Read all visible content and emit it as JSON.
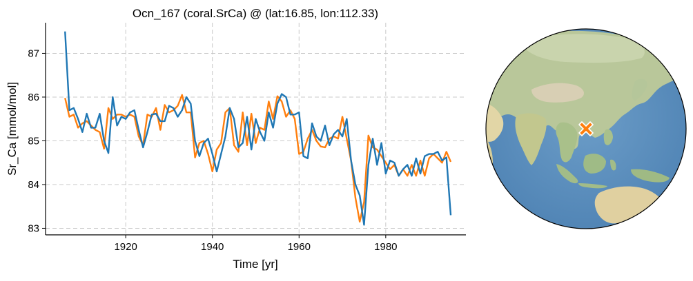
{
  "chart_data": {
    "type": "line",
    "title": "Ocn_167 (coral.SrCa) @ (lat:16.85, lon:112.33)",
    "xlabel": "Time [yr]",
    "ylabel": "Sr_Ca [mmol/mol]",
    "xlim": [
      1901.5,
      1998.5
    ],
    "ylim": [
      82.85,
      87.7
    ],
    "xticks": [
      1920,
      1940,
      1960,
      1980
    ],
    "yticks": [
      83,
      84,
      85,
      86,
      87
    ],
    "grid": true,
    "series": [
      {
        "color": "#ff7f0e",
        "x": [
          1906,
          1907,
          1908,
          1909,
          1910,
          1911,
          1912,
          1913,
          1914,
          1915,
          1916,
          1917,
          1918,
          1919,
          1920,
          1921,
          1922,
          1923,
          1924,
          1925,
          1926,
          1927,
          1928,
          1929,
          1930,
          1931,
          1932,
          1933,
          1934,
          1935,
          1936,
          1937,
          1938,
          1939,
          1940,
          1941,
          1942,
          1943,
          1944,
          1945,
          1946,
          1947,
          1948,
          1949,
          1950,
          1951,
          1952,
          1953,
          1954,
          1955,
          1956,
          1957,
          1958,
          1959,
          1960,
          1961,
          1962,
          1963,
          1964,
          1965,
          1966,
          1967,
          1968,
          1969,
          1970,
          1971,
          1972,
          1973,
          1974,
          1975,
          1976,
          1977,
          1978,
          1979,
          1980,
          1981,
          1982,
          1983,
          1984,
          1985,
          1986,
          1987,
          1988,
          1989,
          1990,
          1991,
          1992,
          1993,
          1994,
          1995
        ],
        "values": [
          85.98,
          85.55,
          85.6,
          85.3,
          85.4,
          85.45,
          85.35,
          85.25,
          85.2,
          84.82,
          85.75,
          85.5,
          85.6,
          85.6,
          85.55,
          85.6,
          85.55,
          85.1,
          84.9,
          85.6,
          85.55,
          85.75,
          85.25,
          85.82,
          85.65,
          85.7,
          85.8,
          86.05,
          85.65,
          85.65,
          84.62,
          84.95,
          85.0,
          84.7,
          84.3,
          84.8,
          84.95,
          85.65,
          85.75,
          84.9,
          84.75,
          85.65,
          84.9,
          85.62,
          84.95,
          85.3,
          85.25,
          85.9,
          85.5,
          86.02,
          85.9,
          85.55,
          85.7,
          85.5,
          84.7,
          84.75,
          85.05,
          85.25,
          85.0,
          84.87,
          84.85,
          85.05,
          85.1,
          85.05,
          85.55,
          85.05,
          84.55,
          83.7,
          83.15,
          83.6,
          85.12,
          84.85,
          84.8,
          84.65,
          84.5,
          84.35,
          84.45,
          84.2,
          84.35,
          84.2,
          84.45,
          84.2,
          84.55,
          84.2,
          84.6,
          84.7,
          84.6,
          84.5,
          84.75,
          84.52
        ]
      },
      {
        "color": "#1f77b4",
        "x": [
          1906,
          1907,
          1908,
          1909,
          1910,
          1911,
          1912,
          1913,
          1914,
          1915,
          1916,
          1917,
          1918,
          1919,
          1920,
          1921,
          1922,
          1923,
          1924,
          1925,
          1926,
          1927,
          1928,
          1929,
          1930,
          1931,
          1932,
          1933,
          1934,
          1935,
          1936,
          1937,
          1938,
          1939,
          1940,
          1941,
          1942,
          1943,
          1944,
          1945,
          1946,
          1947,
          1948,
          1949,
          1950,
          1951,
          1952,
          1953,
          1954,
          1955,
          1956,
          1957,
          1958,
          1959,
          1960,
          1961,
          1962,
          1963,
          1964,
          1965,
          1966,
          1967,
          1968,
          1969,
          1970,
          1971,
          1972,
          1973,
          1974,
          1975,
          1976,
          1977,
          1978,
          1979,
          1980,
          1981,
          1982,
          1983,
          1984,
          1985,
          1986,
          1987,
          1988,
          1989,
          1990,
          1991,
          1992,
          1993,
          1994,
          1995
        ],
        "values": [
          87.5,
          85.7,
          85.75,
          85.5,
          85.2,
          85.62,
          85.3,
          85.3,
          85.62,
          85.0,
          84.72,
          86.0,
          85.35,
          85.55,
          85.5,
          85.65,
          85.7,
          85.25,
          84.85,
          85.2,
          85.6,
          85.62,
          85.45,
          85.45,
          85.8,
          85.75,
          85.55,
          85.7,
          86.0,
          85.85,
          85.0,
          84.65,
          84.95,
          85.05,
          84.7,
          84.3,
          84.7,
          85.1,
          85.75,
          85.5,
          84.85,
          84.95,
          85.55,
          84.8,
          85.5,
          85.2,
          85.0,
          85.65,
          85.3,
          85.85,
          86.07,
          86.0,
          85.6,
          85.6,
          85.65,
          84.65,
          84.6,
          85.4,
          85.1,
          85.0,
          85.35,
          84.9,
          85.15,
          85.25,
          85.1,
          85.5,
          84.55,
          84.0,
          83.75,
          83.08,
          84.45,
          85.05,
          84.45,
          84.95,
          84.25,
          84.55,
          84.5,
          84.2,
          84.35,
          84.45,
          84.2,
          84.6,
          84.25,
          84.65,
          84.7,
          84.7,
          84.75,
          84.55,
          84.62,
          83.3
        ]
      }
    ]
  },
  "map": {
    "marker_lat": 16.85,
    "marker_lon": 112.33,
    "marker_color": "#ff7f0e",
    "ocean_color": "#5b8fbf"
  }
}
